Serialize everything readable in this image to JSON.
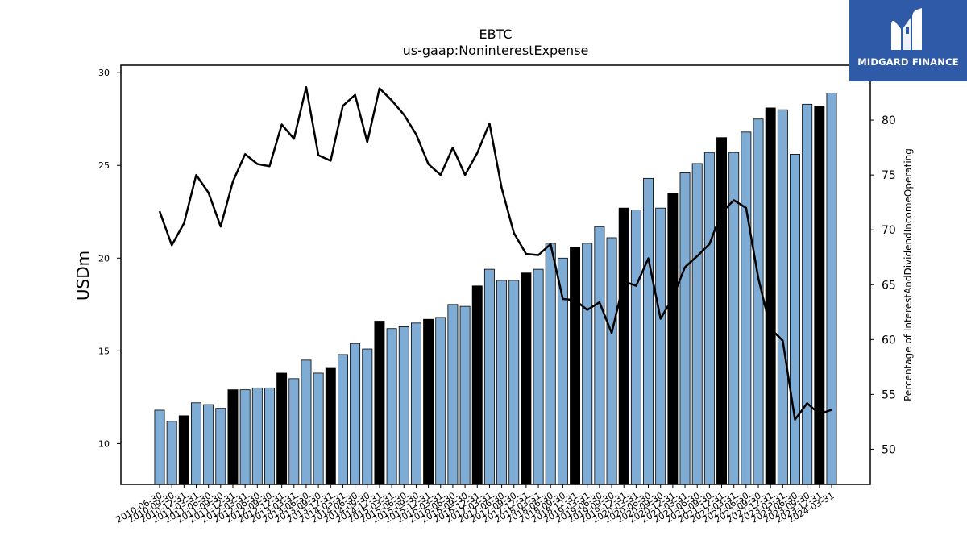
{
  "brand": {
    "name": "MIDGARD FINANCE",
    "color": "#2e5aa8"
  },
  "chart_data": {
    "type": "bar",
    "title": "EBTC",
    "subtitle": "us-gaap:NoninterestExpense",
    "ylabel": "USDm",
    "y2label": "Percentage of InterestAndDividendIncomeOperating",
    "ylim": [
      7.8,
      30.4
    ],
    "y2lim": [
      46.8,
      85.0
    ],
    "yticks": [
      10,
      15,
      20,
      25,
      30
    ],
    "y2ticks": [
      50,
      55,
      60,
      65,
      70,
      75,
      80
    ],
    "colors": {
      "bar": "#7eacd4",
      "bar_q4": "#000000",
      "line": "#000000"
    },
    "categories": [
      "2010-06-30",
      "2010-09-30",
      "2010-12-31",
      "2011-03-31",
      "2011-06-30",
      "2011-09-30",
      "2011-12-31",
      "2012-03-31",
      "2012-06-30",
      "2012-09-30",
      "2012-12-31",
      "2013-03-31",
      "2013-06-30",
      "2013-09-30",
      "2013-12-31",
      "2014-03-31",
      "2014-06-30",
      "2014-09-30",
      "2014-12-31",
      "2015-03-31",
      "2015-06-30",
      "2015-09-30",
      "2015-12-31",
      "2016-03-31",
      "2016-06-30",
      "2016-09-30",
      "2016-12-31",
      "2017-03-31",
      "2017-06-30",
      "2017-09-30",
      "2017-12-31",
      "2018-03-31",
      "2018-06-30",
      "2018-09-30",
      "2018-12-31",
      "2019-03-31",
      "2019-06-30",
      "2019-09-30",
      "2019-12-31",
      "2020-03-31",
      "2020-06-30",
      "2020-09-30",
      "2020-12-31",
      "2021-03-31",
      "2021-06-30",
      "2021-09-30",
      "2021-12-31",
      "2022-03-31",
      "2022-06-30",
      "2022-09-30",
      "2022-12-31",
      "2023-03-31",
      "2023-06-30",
      "2023-09-30",
      "2023-12-31",
      "2024-03-31"
    ],
    "series": [
      {
        "kind": "bar",
        "values": [
          11.8,
          11.2,
          11.5,
          12.2,
          12.1,
          11.9,
          12.9,
          12.9,
          13.0,
          13.0,
          13.8,
          13.5,
          14.5,
          13.8,
          14.1,
          14.8,
          15.4,
          15.1,
          16.6,
          16.2,
          16.3,
          16.5,
          16.7,
          16.8,
          17.5,
          17.4,
          18.5,
          19.4,
          18.8,
          18.8,
          19.2,
          19.4,
          20.8,
          20.0,
          20.6,
          20.8,
          21.7,
          21.1,
          22.7,
          22.6,
          24.3,
          22.7,
          23.5,
          24.6,
          25.1,
          25.7,
          26.5,
          25.7,
          26.8,
          27.5,
          28.1,
          28.0,
          25.6,
          28.3,
          28.2,
          28.9
        ],
        "q4_flags": [
          0,
          0,
          1,
          0,
          0,
          0,
          1,
          0,
          0,
          0,
          1,
          0,
          0,
          0,
          1,
          0,
          0,
          0,
          1,
          0,
          0,
          0,
          1,
          0,
          0,
          0,
          1,
          0,
          0,
          0,
          1,
          0,
          0,
          0,
          1,
          0,
          0,
          0,
          1,
          0,
          0,
          0,
          1,
          0,
          0,
          0,
          1,
          0,
          0,
          0,
          1,
          0,
          0,
          0,
          1,
          0
        ]
      },
      {
        "kind": "line",
        "axis": "right",
        "values": [
          71.7,
          68.6,
          70.6,
          75.0,
          73.4,
          70.3,
          74.4,
          76.9,
          76.0,
          75.8,
          79.6,
          78.3,
          83.0,
          76.8,
          76.3,
          81.3,
          82.3,
          78.0,
          82.9,
          81.8,
          80.5,
          78.7,
          76.0,
          75.0,
          77.5,
          75.0,
          77.0,
          79.7,
          73.8,
          69.7,
          67.8,
          67.7,
          68.7,
          63.7,
          63.6,
          62.7,
          63.4,
          60.6,
          65.3,
          64.9,
          67.4,
          61.9,
          63.8,
          66.6,
          67.6,
          68.7,
          71.6,
          72.7,
          72.0,
          65.6,
          61.0,
          59.9,
          52.7,
          54.2,
          53.2,
          53.6
        ]
      }
    ]
  }
}
